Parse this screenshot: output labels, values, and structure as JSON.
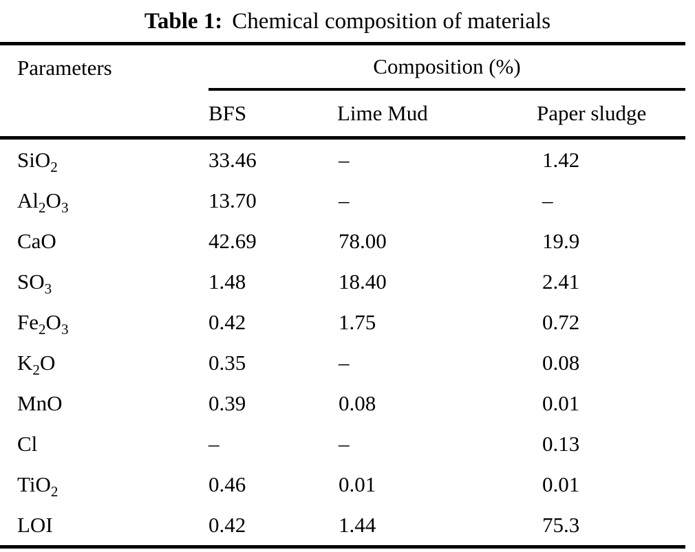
{
  "caption": {
    "label": "Table 1:",
    "text": "Chemical composition of materials"
  },
  "table": {
    "param_header": "Parameters",
    "group_header": "Composition (%)",
    "columns": [
      "BFS",
      "Lime Mud",
      "Paper sludge"
    ],
    "rows": [
      {
        "param": "SiO₂",
        "bfs": "33.46",
        "lime_mud": "–",
        "paper_sludge": "1.42"
      },
      {
        "param": "Al₂O₃",
        "bfs": "13.70",
        "lime_mud": "–",
        "paper_sludge": "–"
      },
      {
        "param": "CaO",
        "bfs": "42.69",
        "lime_mud": "78.00",
        "paper_sludge": "19.9"
      },
      {
        "param": "SO₃",
        "bfs": "1.48",
        "lime_mud": "18.40",
        "paper_sludge": "2.41"
      },
      {
        "param": "Fe₂O₃",
        "bfs": "0.42",
        "lime_mud": "1.75",
        "paper_sludge": "0.72"
      },
      {
        "param": "K₂O",
        "bfs": "0.35",
        "lime_mud": "–",
        "paper_sludge": "0.08"
      },
      {
        "param": "MnO",
        "bfs": "0.39",
        "lime_mud": "0.08",
        "paper_sludge": "0.01"
      },
      {
        "param": "Cl",
        "bfs": "–",
        "lime_mud": "–",
        "paper_sludge": "0.13"
      },
      {
        "param": "TiO₂",
        "bfs": "0.46",
        "lime_mud": "0.01",
        "paper_sludge": "0.01"
      },
      {
        "param": "LOI",
        "bfs": "0.42",
        "lime_mud": "1.44",
        "paper_sludge": "75.3"
      }
    ],
    "colors": {
      "text": "#000000",
      "background": "#ffffff",
      "rule": "#000000"
    }
  }
}
